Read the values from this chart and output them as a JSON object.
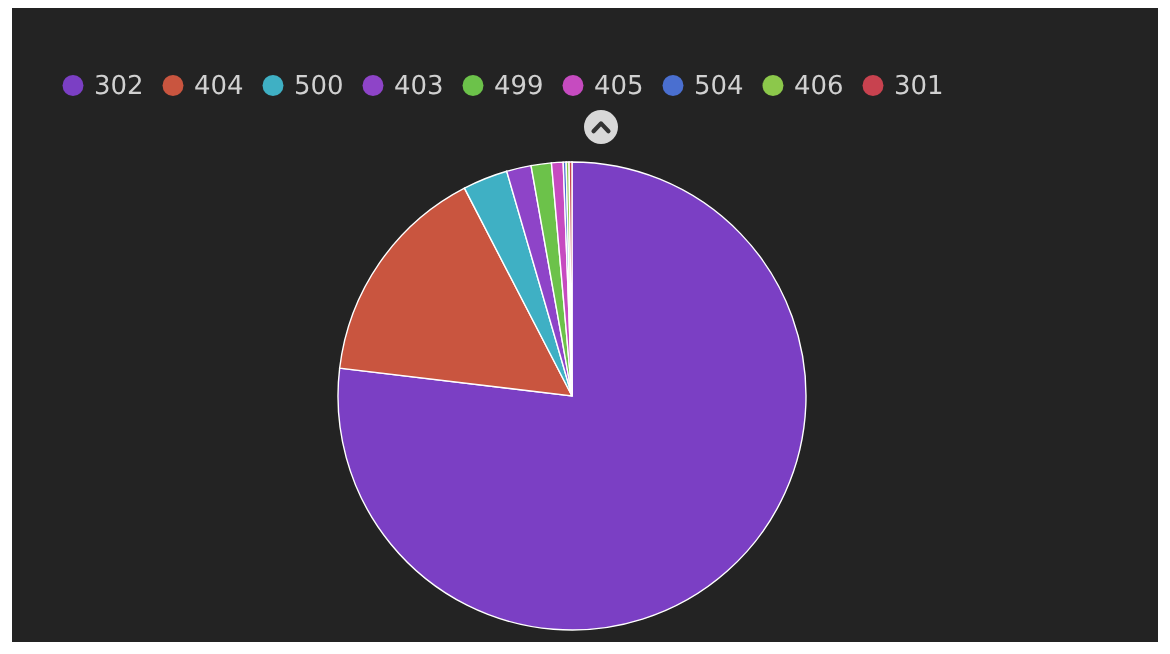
{
  "chart_data": {
    "type": "pie",
    "categories": [
      "302",
      "404",
      "500",
      "403",
      "499",
      "405",
      "504",
      "406",
      "301"
    ],
    "values": [
      76.9,
      15.5,
      3.1,
      1.7,
      1.4,
      0.8,
      0.2,
      0.2,
      0.2
    ],
    "colors": [
      "#7b3fc4",
      "#c9553f",
      "#3fb0c4",
      "#8e44c8",
      "#6cc24a",
      "#c64bc0",
      "#4a6fd0",
      "#8cc84b",
      "#c8424f"
    ],
    "legend": "top left"
  }
}
